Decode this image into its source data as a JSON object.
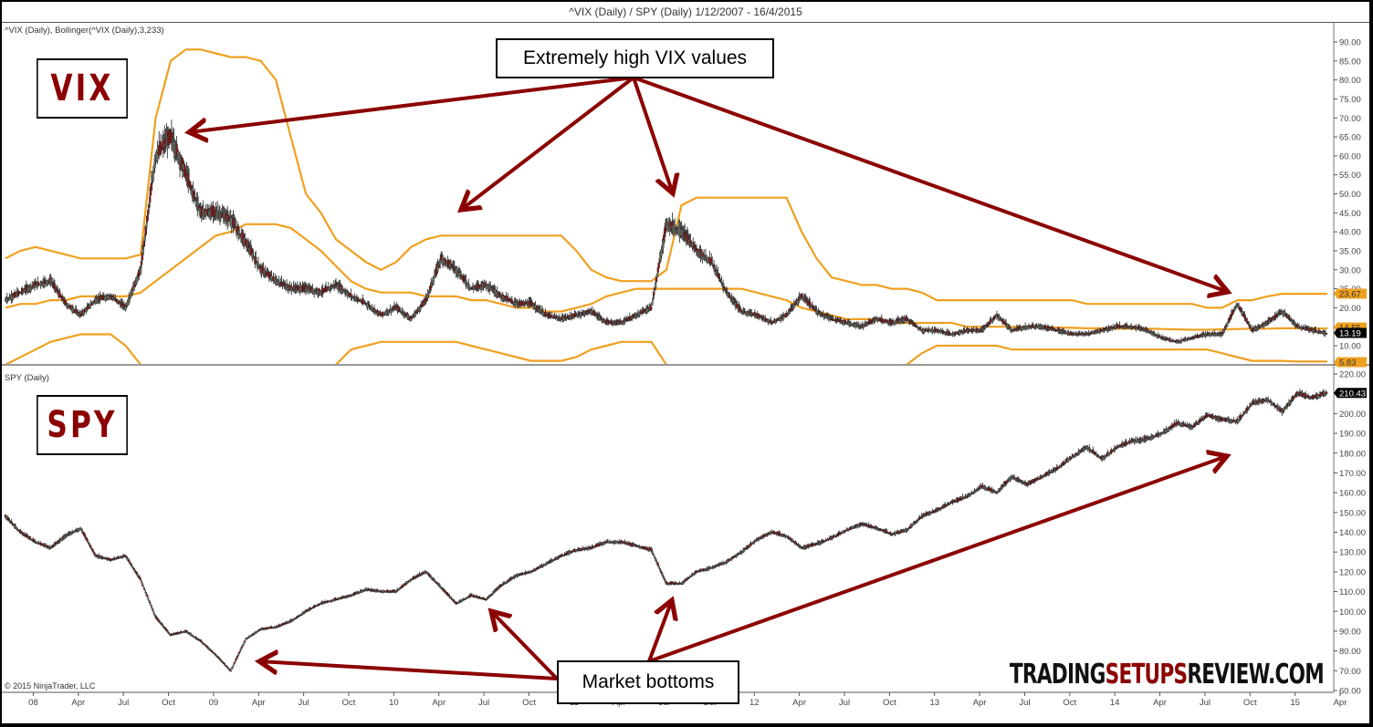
{
  "window": {
    "title": "^VIX (Daily) / SPY (Daily)  1/12/2007 - 16/4/2015"
  },
  "panels": {
    "vix": {
      "label": "^VIX (Daily), Bollinger(^VIX (Daily),3,233)",
      "ticker": "VIX",
      "axis_ticks": [
        "90.00",
        "85.00",
        "80.00",
        "75.00",
        "70.00",
        "65.00",
        "60.00",
        "55.00",
        "50.00",
        "45.00",
        "40.00",
        "35.00",
        "30.00",
        "25.00",
        "20.00",
        "15.00",
        "10.00"
      ],
      "price_badges": [
        {
          "label": "23.67",
          "type": "upper-band",
          "color": "#f0a020"
        },
        {
          "label": "14.55",
          "type": "middle-band",
          "color": "#f0a020"
        },
        {
          "label": "13.19",
          "type": "last-price",
          "color": "#000000"
        },
        {
          "label": "5.83",
          "type": "lower-band",
          "color": "#f0a020"
        }
      ]
    },
    "spy": {
      "label": "SPY (Daily)",
      "ticker": "SPY",
      "axis_ticks": [
        "220.00",
        "210.00",
        "200.00",
        "190.00",
        "180.00",
        "170.00",
        "160.00",
        "150.00",
        "140.00",
        "130.00",
        "120.00",
        "110.00",
        "100.00",
        "90.00",
        "80.00",
        "70.00",
        "60.00"
      ],
      "price_badges": [
        {
          "label": "210.43",
          "type": "last-price",
          "color": "#000000"
        }
      ]
    }
  },
  "annotations": {
    "vix_callout": "Extremely high VIX values",
    "spy_callout": "Market bottoms"
  },
  "x_axis": {
    "ticks": [
      "08",
      "Apr",
      "Jul",
      "Oct",
      "09",
      "Apr",
      "Jul",
      "Oct",
      "10",
      "Apr",
      "Jul",
      "Oct",
      "11",
      "Apr",
      "Jul",
      "Oct",
      "12",
      "Apr",
      "Jul",
      "Oct",
      "13",
      "Apr",
      "Jul",
      "Oct",
      "14",
      "Apr",
      "Jul",
      "Oct",
      "15",
      "Apr"
    ]
  },
  "footer": {
    "copyright": "© 2015 NinjaTrader, LLC",
    "brand_part1": "TRADING",
    "brand_part2": "SETUPS",
    "brand_part3": "REVIEW.COM"
  },
  "colors": {
    "band": "#f0a020",
    "arrow": "#8b0000",
    "up_candle": "#6e7a6e",
    "down_candle": "#8b1a1a",
    "ticker_text": "#8b0000"
  },
  "chart_data": [
    {
      "type": "line",
      "title": "^VIX (Daily), Bollinger(^VIX (Daily),3,233)",
      "x": [
        "2007-12",
        "2008-01",
        "2008-02",
        "2008-03",
        "2008-04",
        "2008-05",
        "2008-06",
        "2008-07",
        "2008-08",
        "2008-09",
        "2008-10",
        "2008-11",
        "2008-12",
        "2009-01",
        "2009-02",
        "2009-03",
        "2009-04",
        "2009-05",
        "2009-06",
        "2009-07",
        "2009-08",
        "2009-09",
        "2009-10",
        "2009-11",
        "2009-12",
        "2010-01",
        "2010-02",
        "2010-03",
        "2010-04",
        "2010-05",
        "2010-06",
        "2010-07",
        "2010-08",
        "2010-09",
        "2010-10",
        "2010-11",
        "2010-12",
        "2011-01",
        "2011-02",
        "2011-03",
        "2011-04",
        "2011-05",
        "2011-06",
        "2011-07",
        "2011-08",
        "2011-09",
        "2011-10",
        "2011-11",
        "2011-12",
        "2012-01",
        "2012-02",
        "2012-03",
        "2012-04",
        "2012-05",
        "2012-06",
        "2012-07",
        "2012-08",
        "2012-09",
        "2012-10",
        "2012-11",
        "2012-12",
        "2013-01",
        "2013-02",
        "2013-03",
        "2013-04",
        "2013-05",
        "2013-06",
        "2013-07",
        "2013-08",
        "2013-09",
        "2013-10",
        "2013-11",
        "2013-12",
        "2014-01",
        "2014-02",
        "2014-03",
        "2014-04",
        "2014-05",
        "2014-06",
        "2014-07",
        "2014-08",
        "2014-09",
        "2014-10",
        "2014-11",
        "2014-12",
        "2015-01",
        "2015-02",
        "2015-03",
        "2015-04"
      ],
      "series": [
        {
          "name": "VIX close",
          "values": [
            22,
            24,
            26,
            27,
            21,
            18,
            22,
            23,
            20,
            30,
            60,
            65,
            55,
            45,
            45,
            43,
            37,
            30,
            27,
            25,
            25,
            24,
            26,
            23,
            21,
            18,
            20,
            17,
            22,
            33,
            30,
            25,
            26,
            23,
            21,
            21,
            18,
            17,
            18,
            19,
            16,
            16,
            18,
            20,
            42,
            40,
            35,
            32,
            24,
            19,
            18,
            16,
            18,
            23,
            19,
            17,
            16,
            15,
            17,
            16,
            17,
            14,
            14,
            13,
            14,
            14,
            18,
            14,
            15,
            15,
            14,
            13,
            13,
            14,
            15,
            15,
            14,
            12,
            11,
            12,
            13,
            13,
            21,
            14,
            16,
            19,
            15,
            14,
            13.19
          ]
        },
        {
          "name": "Bollinger upper",
          "values": [
            33,
            35,
            36,
            35,
            34,
            33,
            33,
            33,
            33,
            34,
            70,
            85,
            88,
            88,
            87,
            86,
            86,
            85,
            80,
            65,
            50,
            45,
            38,
            35,
            32,
            30,
            32,
            36,
            38,
            39,
            39,
            39,
            39,
            39,
            39,
            39,
            39,
            39,
            35,
            30,
            28,
            27,
            27,
            27,
            30,
            47,
            49,
            49,
            49,
            49,
            49,
            49,
            49,
            40,
            33,
            28,
            27,
            26,
            26,
            25,
            25,
            24,
            22,
            22,
            22,
            22,
            22,
            22,
            22,
            22,
            22,
            22,
            21,
            21,
            21,
            21,
            21,
            21,
            21,
            21,
            20,
            20,
            22,
            22,
            23,
            23.67,
            23.67,
            23.67,
            23.67
          ]
        },
        {
          "name": "Bollinger middle",
          "values": [
            20,
            21,
            21,
            22,
            22,
            23,
            23,
            23,
            23,
            24,
            27,
            30,
            33,
            36,
            39,
            40,
            42,
            42,
            42,
            41,
            38,
            35,
            31,
            27,
            25,
            24,
            24,
            24,
            23,
            23,
            23,
            22,
            22,
            21,
            20,
            20,
            19,
            19,
            20,
            21,
            23,
            24,
            25,
            25,
            25,
            25,
            25,
            25,
            25,
            25,
            24,
            23,
            22,
            20,
            19,
            18,
            17,
            17,
            17,
            16,
            16,
            16,
            16,
            16,
            15,
            15,
            15,
            15,
            15,
            15,
            14.8,
            14.7,
            14.6,
            14.6,
            14.5,
            14.5,
            14.5,
            14.4,
            14.3,
            14.2,
            14.2,
            14.3,
            14.4,
            14.5,
            14.5,
            14.6,
            14.6,
            14.55,
            14.55
          ]
        },
        {
          "name": "Bollinger lower",
          "values": [
            5,
            7,
            9,
            11,
            12,
            13,
            13,
            13,
            10,
            5,
            0,
            0,
            0,
            0,
            0,
            0,
            0,
            0,
            0,
            0,
            0,
            0,
            5,
            9,
            10,
            11,
            11,
            11,
            11,
            11,
            11,
            10,
            9,
            8,
            7,
            6,
            6,
            6,
            7,
            9,
            10,
            11,
            11,
            11,
            5,
            0,
            0,
            0,
            0,
            0,
            0,
            0,
            0,
            0,
            0,
            0,
            0,
            0,
            0,
            2,
            5,
            8,
            10,
            10,
            10,
            10,
            10,
            9,
            9,
            9,
            9,
            9,
            9,
            9,
            9,
            9,
            9,
            9,
            9,
            9,
            9,
            8,
            7,
            6,
            6,
            6,
            5.83,
            5.83,
            5.83
          ]
        }
      ],
      "xlabel": "",
      "ylabel": "",
      "ylim": [
        7,
        92
      ],
      "annotations": [
        "Extremely high VIX values"
      ],
      "legend_position": "none",
      "grid": false
    },
    {
      "type": "line",
      "title": "SPY (Daily)",
      "x": [
        "2007-12",
        "2008-01",
        "2008-02",
        "2008-03",
        "2008-04",
        "2008-05",
        "2008-06",
        "2008-07",
        "2008-08",
        "2008-09",
        "2008-10",
        "2008-11",
        "2008-12",
        "2009-01",
        "2009-02",
        "2009-03",
        "2009-04",
        "2009-05",
        "2009-06",
        "2009-07",
        "2009-08",
        "2009-09",
        "2009-10",
        "2009-11",
        "2009-12",
        "2010-01",
        "2010-02",
        "2010-03",
        "2010-04",
        "2010-05",
        "2010-06",
        "2010-07",
        "2010-08",
        "2010-09",
        "2010-10",
        "2010-11",
        "2010-12",
        "2011-01",
        "2011-02",
        "2011-03",
        "2011-04",
        "2011-05",
        "2011-06",
        "2011-07",
        "2011-08",
        "2011-09",
        "2011-10",
        "2011-11",
        "2011-12",
        "2012-01",
        "2012-02",
        "2012-03",
        "2012-04",
        "2012-05",
        "2012-06",
        "2012-07",
        "2012-08",
        "2012-09",
        "2012-10",
        "2012-11",
        "2012-12",
        "2013-01",
        "2013-02",
        "2013-03",
        "2013-04",
        "2013-05",
        "2013-06",
        "2013-07",
        "2013-08",
        "2013-09",
        "2013-10",
        "2013-11",
        "2013-12",
        "2014-01",
        "2014-02",
        "2014-03",
        "2014-04",
        "2014-05",
        "2014-06",
        "2014-07",
        "2014-08",
        "2014-09",
        "2014-10",
        "2014-11",
        "2014-12",
        "2015-01",
        "2015-02",
        "2015-03",
        "2015-04"
      ],
      "series": [
        {
          "name": "SPY close",
          "values": [
            148,
            140,
            135,
            132,
            138,
            142,
            128,
            126,
            128,
            116,
            97,
            88,
            90,
            85,
            78,
            70,
            86,
            91,
            92,
            95,
            100,
            104,
            106,
            108,
            111,
            110,
            110,
            116,
            120,
            112,
            104,
            108,
            106,
            113,
            118,
            120,
            124,
            128,
            131,
            132,
            135,
            135,
            133,
            131,
            114,
            114,
            120,
            122,
            125,
            130,
            136,
            140,
            138,
            132,
            134,
            137,
            141,
            144,
            142,
            139,
            141,
            148,
            151,
            155,
            158,
            163,
            160,
            168,
            164,
            168,
            172,
            178,
            183,
            177,
            183,
            186,
            187,
            190,
            195,
            193,
            199,
            197,
            196,
            205,
            207,
            201,
            210,
            208,
            210.43
          ]
        }
      ],
      "xlabel": "",
      "ylabel": "",
      "ylim": [
        60,
        220
      ],
      "annotations": [
        "Market bottoms"
      ],
      "legend_position": "none",
      "grid": false
    }
  ]
}
